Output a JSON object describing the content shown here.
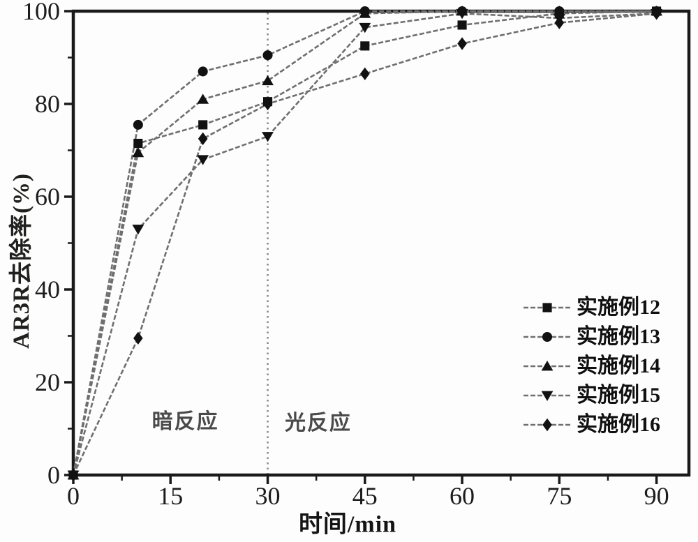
{
  "chart_data": {
    "type": "line",
    "title": "",
    "xlabel": "时间/min",
    "ylabel": "AR3R去除率(%)",
    "xlim": [
      0,
      95
    ],
    "ylim": [
      0,
      100
    ],
    "xticks": [
      "0",
      "15",
      "30",
      "45",
      "60",
      "75",
      "90"
    ],
    "yticks": [
      "0",
      "20",
      "40",
      "60",
      "80",
      "100"
    ],
    "x_minor_step": 7.5,
    "y_minor_step": 10,
    "grid": false,
    "legend_position": "right-middle",
    "x": [
      0,
      10,
      20,
      30,
      45,
      60,
      75,
      90
    ],
    "series": [
      {
        "name": "实施例12",
        "marker": "square",
        "values": [
          0,
          71.5,
          75.5,
          80.5,
          92.5,
          97,
          99.5,
          100
        ]
      },
      {
        "name": "实施例13",
        "marker": "circle",
        "values": [
          0,
          75.5,
          87,
          90.5,
          100,
          100,
          100,
          100
        ]
      },
      {
        "name": "实施例14",
        "marker": "triangle-up",
        "values": [
          0,
          69.5,
          81,
          85,
          99.5,
          100,
          100,
          100
        ]
      },
      {
        "name": "实施例15",
        "marker": "triangle-down",
        "values": [
          0,
          53,
          68,
          73,
          96.5,
          99.5,
          98.5,
          99.5
        ]
      },
      {
        "name": "实施例16",
        "marker": "diamond",
        "values": [
          0,
          29.5,
          72.5,
          80,
          86.5,
          93,
          97.5,
          99.5
        ]
      }
    ],
    "divider": {
      "x": 30,
      "style": "dotted"
    },
    "annotations": [
      {
        "text": "暗反应",
        "x": 17.3,
        "y": 12.0
      },
      {
        "text": "光反应",
        "x": 37.8,
        "y": 11.7
      }
    ],
    "colors": {
      "line": "#6f6f6f",
      "marker": "#111111",
      "axis": "#1a1a1a",
      "divider": "#8a8a8a",
      "annotation": "#4a4a4a",
      "background": "#fdfdfd"
    }
  }
}
